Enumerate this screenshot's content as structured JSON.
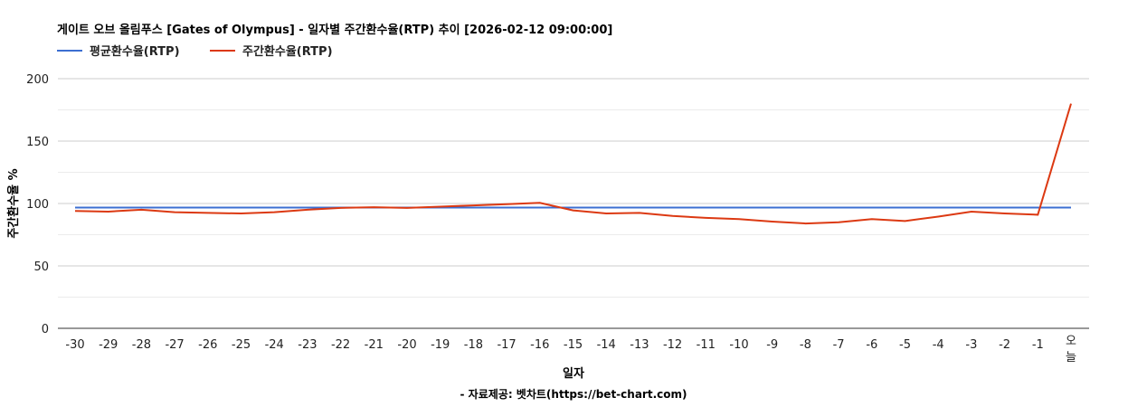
{
  "chart_data": {
    "type": "line",
    "title": "게이트 오브 올림푸스 [Gates of Olympus] - 일자별 주간환수율(RTP) 추이 [2026-02-12 09:00:00]",
    "xlabel": "일자",
    "ylabel": "주간환수율 %",
    "source": "- 자료제공: 벳차트(https://bet-chart.com)",
    "ylim": [
      0,
      200
    ],
    "yticks": [
      "0",
      "50",
      "100",
      "150",
      "200"
    ],
    "grid": true,
    "legend_position": "top-left",
    "categories": [
      "-30",
      "-29",
      "-28",
      "-27",
      "-26",
      "-25",
      "-24",
      "-23",
      "-22",
      "-21",
      "-20",
      "-19",
      "-18",
      "-17",
      "-16",
      "-15",
      "-14",
      "-13",
      "-12",
      "-11",
      "-10",
      "-9",
      "-8",
      "-7",
      "-6",
      "-5",
      "-4",
      "-3",
      "-2",
      "-1",
      "오늘"
    ],
    "series": [
      {
        "name": "평균환수율(RTP)",
        "color": "#3c6fd1",
        "values": [
          96.7,
          96.7,
          96.7,
          96.7,
          96.7,
          96.7,
          96.7,
          96.7,
          96.7,
          96.7,
          96.7,
          96.7,
          96.7,
          96.7,
          96.7,
          96.7,
          96.7,
          96.7,
          96.7,
          96.7,
          96.7,
          96.7,
          96.7,
          96.7,
          96.7,
          96.7,
          96.7,
          96.7,
          96.7,
          96.7,
          96.7
        ]
      },
      {
        "name": "주간환수율(RTP)",
        "color": "#dc3912",
        "values": [
          94,
          93.5,
          95,
          93,
          92.5,
          92,
          93,
          95,
          96.5,
          97,
          96.5,
          97.5,
          98.5,
          99.5,
          100.5,
          94.5,
          92,
          92.5,
          90,
          88.5,
          87.5,
          85.5,
          84,
          85,
          87.5,
          86,
          89.5,
          93.5,
          92,
          91,
          180
        ]
      }
    ]
  }
}
